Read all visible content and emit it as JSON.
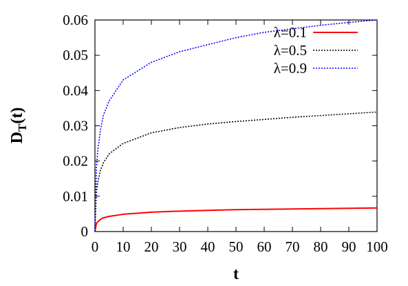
{
  "chart_data": {
    "type": "line",
    "xlabel": "t",
    "ylabel_main": "D",
    "ylabel_sub": "T",
    "ylabel_tail": "(t)",
    "xlim": [
      0,
      100
    ],
    "ylim": [
      0,
      0.06
    ],
    "xticks": [
      0,
      10,
      20,
      30,
      40,
      50,
      60,
      70,
      80,
      90,
      100
    ],
    "yticks": [
      0,
      0.01,
      0.02,
      0.03,
      0.04,
      0.05,
      0.06
    ],
    "xtick_labels": [
      "0",
      "10",
      "20",
      "30",
      "40",
      "50",
      "60",
      "70",
      "80",
      "90",
      "100"
    ],
    "ytick_labels": [
      "0",
      "0.01",
      "0.02",
      "0.03",
      "0.04",
      "0.05",
      "0.06"
    ],
    "legend_position": "top-right",
    "grid": false,
    "series": [
      {
        "name": "λ=0.1",
        "color": "#ff0000",
        "style": "solid",
        "x": [
          0,
          0.5,
          1,
          2,
          3,
          5,
          10,
          20,
          30,
          40,
          50,
          60,
          70,
          80,
          90,
          100
        ],
        "y": [
          0,
          0.0022,
          0.0028,
          0.0035,
          0.0039,
          0.0043,
          0.0049,
          0.0055,
          0.0058,
          0.006,
          0.0062,
          0.0063,
          0.0064,
          0.0065,
          0.0066,
          0.0067
        ]
      },
      {
        "name": "λ=0.5",
        "color": "#000000",
        "style": "dotted",
        "x": [
          0,
          0.5,
          1,
          2,
          3,
          5,
          10,
          20,
          30,
          40,
          50,
          60,
          70,
          80,
          90,
          100
        ],
        "y": [
          0,
          0.011,
          0.014,
          0.0175,
          0.0195,
          0.022,
          0.025,
          0.028,
          0.0295,
          0.0305,
          0.0312,
          0.0318,
          0.0324,
          0.0329,
          0.0334,
          0.0339
        ]
      },
      {
        "name": "λ=0.9",
        "color": "#0000ff",
        "style": "dotted",
        "x": [
          0,
          0.5,
          1,
          2,
          3,
          5,
          10,
          20,
          30,
          40,
          50,
          60,
          70,
          80,
          90,
          100
        ],
        "y": [
          0,
          0.018,
          0.023,
          0.029,
          0.033,
          0.037,
          0.043,
          0.048,
          0.051,
          0.053,
          0.055,
          0.0565,
          0.0575,
          0.0585,
          0.0593,
          0.06
        ]
      }
    ]
  }
}
